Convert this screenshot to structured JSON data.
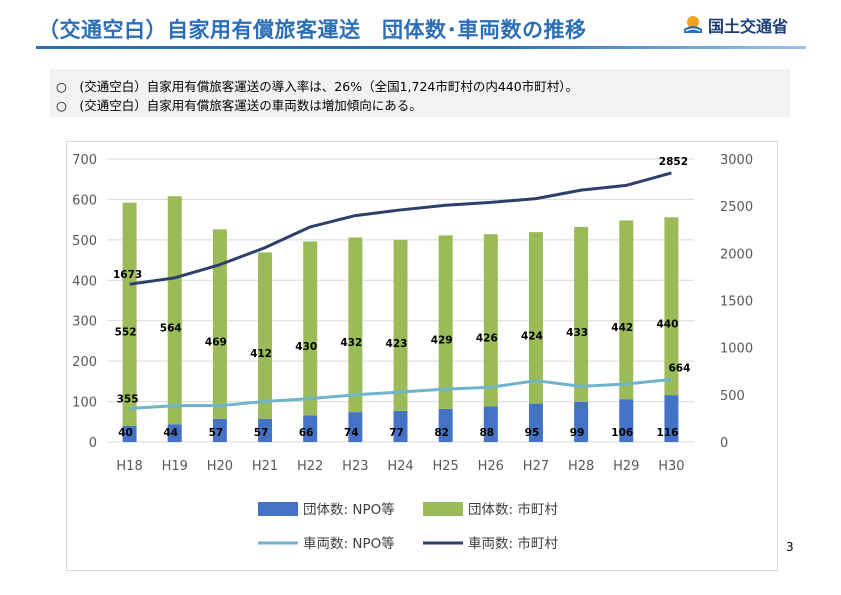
{
  "header": {
    "title": "（交通空白）自家用有償旅客運送　団体数･車両数の推移",
    "ministry": "国土交通省"
  },
  "notes": [
    "○　(交通空白）自家用有償旅客運送の導入率は、26%（全国1,724市町村の内440市町村）。",
    "○　(交通空白）自家用有償旅客運送の車両数は増加傾向にある。"
  ],
  "page_number": "3",
  "colors": {
    "npo_bar": "#4472c4",
    "muni_bar": "#9bbb59",
    "npo_line": "#6fb3cc",
    "muni_line": "#2f3f6b",
    "title": "#2c6fb7"
  },
  "chart_data": {
    "type": "bar",
    "stacked": true,
    "categories": [
      "H18",
      "H19",
      "H20",
      "H21",
      "H22",
      "H23",
      "H24",
      "H25",
      "H26",
      "H27",
      "H28",
      "H29",
      "H30"
    ],
    "series": [
      {
        "name": "団体数: NPO等",
        "type": "bar",
        "axis": "left",
        "values": [
          40,
          44,
          57,
          57,
          66,
          74,
          77,
          82,
          88,
          95,
          99,
          106,
          116
        ]
      },
      {
        "name": "団体数: 市町村",
        "type": "bar",
        "axis": "left",
        "values": [
          552,
          564,
          469,
          412,
          430,
          432,
          423,
          429,
          426,
          424,
          433,
          442,
          440
        ]
      },
      {
        "name": "車両数: NPO等",
        "type": "line",
        "axis": "right",
        "values": [
          355,
          385,
          385,
          430,
          460,
          500,
          530,
          560,
          580,
          650,
          590,
          615,
          664
        ]
      },
      {
        "name": "車両数: 市町村",
        "type": "line",
        "axis": "right",
        "values": [
          1673,
          1740,
          1880,
          2060,
          2280,
          2400,
          2460,
          2510,
          2540,
          2580,
          2670,
          2720,
          2852
        ]
      }
    ],
    "line_labels": {
      "npo_first": "355",
      "npo_last": "664",
      "muni_first": "1673",
      "muni_last": "2852"
    },
    "ylim_left": [
      0,
      700
    ],
    "ylim_right": [
      0,
      3000
    ],
    "yticks_left": [
      "0",
      "100",
      "200",
      "300",
      "400",
      "500",
      "600",
      "700"
    ],
    "yticks_right": [
      "0",
      "500",
      "1000",
      "1500",
      "2000",
      "2500",
      "3000"
    ],
    "legend": {
      "position": "bottom",
      "items": [
        "団体数: NPO等",
        "団体数: 市町村",
        "車両数: NPO等",
        "車両数: 市町村"
      ]
    }
  }
}
